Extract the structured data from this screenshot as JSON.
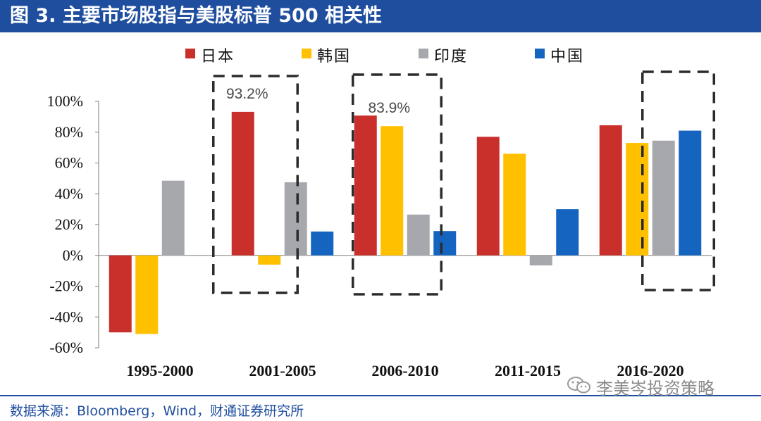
{
  "header": {
    "title": "图 3. 主要市场股指与美股标普 500 相关性"
  },
  "colors": {
    "japan": "#c9302c",
    "korea": "#ffc000",
    "india": "#a6a8ad",
    "china": "#1565c0",
    "brand": "#1f4e9e"
  },
  "chart_data": {
    "type": "bar",
    "title": "主要市场股指与美股标普 500 相关性",
    "xlabel": "",
    "ylabel": "",
    "ylim": [
      -0.6,
      1.0
    ],
    "yticks": [
      -0.6,
      -0.4,
      -0.2,
      0.0,
      0.2,
      0.4,
      0.6,
      0.8,
      1.0
    ],
    "ytick_labels": [
      "-60%",
      "-40%",
      "-20%",
      "0%",
      "20%",
      "40%",
      "60%",
      "80%",
      "100%"
    ],
    "categories": [
      "1995-2000",
      "2001-2005",
      "2006-2010",
      "2011-2015",
      "2016-2020"
    ],
    "legend_position": "top",
    "series": [
      {
        "name": "日本",
        "color": "#c9302c",
        "values": [
          -0.5,
          0.932,
          0.908,
          0.77,
          0.845
        ]
      },
      {
        "name": "韩国",
        "color": "#ffc000",
        "values": [
          -0.51,
          -0.06,
          0.839,
          0.66,
          0.73
        ]
      },
      {
        "name": "印度",
        "color": "#a6a8ad",
        "values": [
          0.485,
          0.475,
          0.265,
          -0.065,
          0.745
        ]
      },
      {
        "name": "中国",
        "color": "#1565c0",
        "values": [
          null,
          0.155,
          0.158,
          0.3,
          0.81
        ]
      }
    ],
    "annotations": [
      {
        "category": "2001-2005",
        "series": "日本",
        "label": "93.2%"
      },
      {
        "category": "2006-2010",
        "series": "韩国",
        "label": "83.9%"
      }
    ],
    "highlight_boxes": [
      "2001-2005",
      "2006-2010",
      "2016-2020"
    ]
  },
  "footer": {
    "source": "数据来源：Bloomberg，Wind，财通证券研究所",
    "watermark": "李美岑投资策略"
  }
}
